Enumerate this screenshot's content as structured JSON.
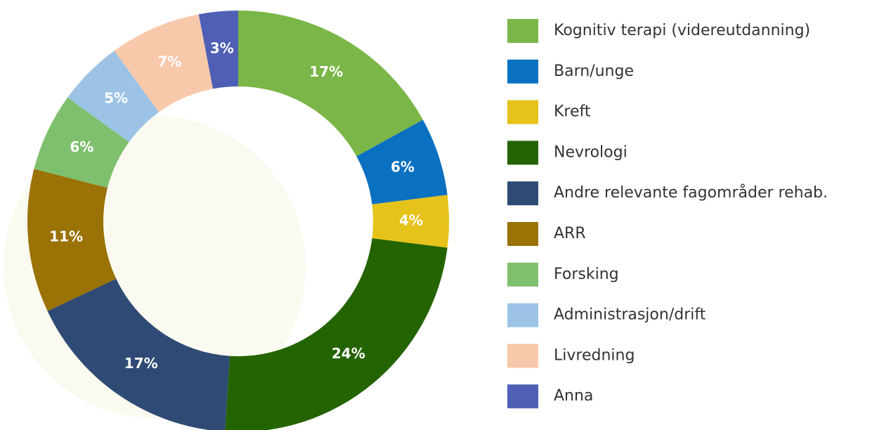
{
  "chart_data": {
    "type": "donut",
    "categories": [
      "Kognitiv terapi (videreutdanning)",
      "Barn/unge",
      "Kreft",
      "Nevrologi",
      "Andre relevante fagområder rehab.",
      "ARR",
      "Forsking",
      "Administrasjon/drift",
      "Livredning",
      "Anna"
    ],
    "values": [
      17,
      6,
      4,
      24,
      17,
      11,
      6,
      5,
      7,
      3
    ],
    "value_labels": [
      "17%",
      "6%",
      "4%",
      "24%",
      "17%",
      "11%",
      "6%",
      "5%",
      "7%",
      "3%"
    ],
    "colors": [
      "#7ab648",
      "#0a70c0",
      "#e6c31a",
      "#246400",
      "#2f4b75",
      "#9a7206",
      "#7fc06e",
      "#9cc3e6",
      "#f8c8aa",
      "#4f5fb5"
    ],
    "legend": "right"
  }
}
